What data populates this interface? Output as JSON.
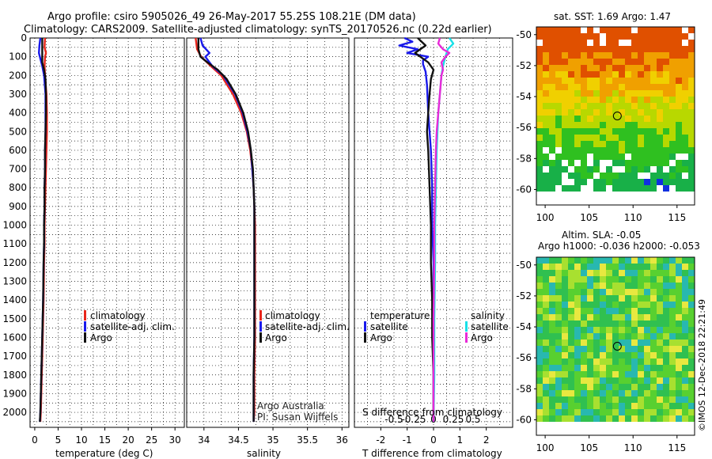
{
  "header": {
    "line1": "Argo profile: csiro 5905026_49 26-May-2017 55.25S 108.21E (DM data)",
    "line2": "Climatology: CARS2009. Satellite-adjusted climatology: synTS_20170526.nc (0.22d earlier)"
  },
  "colors": {
    "climatology": "#e8251a",
    "satellite": "#1a1aeb",
    "argo": "#111111",
    "sat_salinity": "#18e0e8",
    "argo_salinity": "#e82ad8"
  },
  "chart_data": [
    {
      "type": "line",
      "id": "temperature",
      "xlabel": "temperature (deg C)",
      "ylabel": "",
      "xlim": [
        -1,
        32
      ],
      "ylim": [
        2080,
        0
      ],
      "xticks": [
        0,
        5,
        10,
        15,
        20,
        25,
        30
      ],
      "yticks": [
        0,
        100,
        200,
        300,
        400,
        500,
        600,
        700,
        800,
        900,
        1000,
        1100,
        1200,
        1300,
        1400,
        1500,
        1600,
        1700,
        1800,
        1900,
        2000
      ],
      "legend": [
        "climatology",
        "satellite-adj. clim.",
        "Argo"
      ],
      "series": [
        {
          "name": "climatology",
          "color": "#e8251a",
          "depth": [
            0,
            50,
            80,
            100,
            150,
            200,
            300,
            400,
            500,
            600,
            700,
            800,
            900,
            1000,
            1100,
            1200,
            1400,
            1600,
            1800,
            2000,
            2050
          ],
          "values": [
            2.2,
            2.1,
            2.4,
            2.2,
            2.1,
            2.2,
            2.5,
            2.6,
            2.6,
            2.5,
            2.4,
            2.3,
            2.2,
            2.1,
            2.1,
            2.0,
            1.9,
            1.7,
            1.5,
            1.3,
            1.2
          ]
        },
        {
          "name": "satellite-adj. clim.",
          "color": "#1a1aeb",
          "depth": [
            0,
            40,
            80,
            120,
            150,
            200,
            300,
            400,
            500,
            600,
            700,
            800,
            900,
            1000,
            1100,
            1200,
            1400,
            1600,
            1800,
            2000,
            2050
          ],
          "values": [
            1.2,
            1.0,
            0.9,
            1.3,
            1.6,
            2.0,
            2.3,
            2.3,
            2.3,
            2.2,
            2.2,
            2.1,
            2.1,
            2.0,
            2.0,
            1.9,
            1.8,
            1.6,
            1.4,
            1.2,
            1.1
          ]
        },
        {
          "name": "Argo",
          "color": "#111111",
          "depth": [
            0,
            50,
            100,
            130,
            170,
            220,
            300,
            400,
            500,
            600,
            700,
            800,
            900,
            1000,
            1100,
            1200,
            1400,
            1600,
            1800,
            2000,
            2050
          ],
          "values": [
            1.6,
            1.6,
            1.6,
            1.6,
            2.0,
            2.3,
            2.4,
            2.4,
            2.3,
            2.2,
            2.2,
            2.1,
            2.1,
            2.0,
            2.0,
            1.9,
            1.8,
            1.6,
            1.4,
            1.2,
            1.1
          ]
        }
      ]
    },
    {
      "type": "line",
      "id": "salinity",
      "xlabel": "salinity",
      "ylabel": "",
      "xlim": [
        33.75,
        36.1
      ],
      "ylim": [
        2080,
        0
      ],
      "xticks": [
        34,
        34.5,
        35,
        35.5,
        36
      ],
      "yticks": [
        0,
        100,
        200,
        300,
        400,
        500,
        600,
        700,
        800,
        900,
        1000,
        1100,
        1200,
        1300,
        1400,
        1500,
        1600,
        1700,
        1800,
        1900,
        2000
      ],
      "legend": [
        "climatology",
        "satellite-adj. clim.",
        "Argo"
      ],
      "annotations": [
        "Argo Australia",
        "PI: Susan Wijffels"
      ],
      "series": [
        {
          "name": "climatology",
          "color": "#e8251a",
          "depth": [
            0,
            60,
            100,
            150,
            200,
            300,
            400,
            500,
            600,
            700,
            800,
            900,
            1000,
            1100,
            1200,
            1400,
            1600,
            1800,
            2000,
            2050
          ],
          "values": [
            33.88,
            33.9,
            33.96,
            34.1,
            34.25,
            34.42,
            34.54,
            34.62,
            34.67,
            34.7,
            34.72,
            34.73,
            34.74,
            34.74,
            34.74,
            34.74,
            34.74,
            34.73,
            34.73,
            34.72
          ]
        },
        {
          "name": "satellite-adj. clim.",
          "color": "#1a1aeb",
          "depth": [
            0,
            40,
            80,
            100,
            150,
            200,
            300,
            400,
            500,
            600,
            700,
            800,
            900,
            1000,
            1100,
            1200,
            1400,
            1600,
            1800,
            2000,
            2050
          ],
          "values": [
            33.95,
            33.98,
            34.08,
            34.02,
            34.12,
            34.28,
            34.45,
            34.56,
            34.63,
            34.68,
            34.7,
            34.72,
            34.73,
            34.73,
            34.73,
            34.73,
            34.73,
            34.73,
            34.72,
            34.72,
            34.72
          ]
        },
        {
          "name": "Argo",
          "color": "#111111",
          "depth": [
            0,
            60,
            100,
            130,
            170,
            220,
            300,
            400,
            500,
            600,
            700,
            800,
            900,
            1000,
            1100,
            1200,
            1400,
            1600,
            1800,
            2000,
            2050
          ],
          "values": [
            33.92,
            33.92,
            33.95,
            34.05,
            34.2,
            34.33,
            34.46,
            34.57,
            34.64,
            34.68,
            34.71,
            34.72,
            34.73,
            34.73,
            34.73,
            34.73,
            34.73,
            34.73,
            34.72,
            34.72,
            34.72
          ]
        }
      ]
    },
    {
      "type": "line",
      "id": "difference",
      "xlabel": "T difference from climatology",
      "xlabel_top": "S difference from climatology",
      "xlim": [
        -3,
        3
      ],
      "xticks": [
        -2,
        -1,
        0,
        1,
        2
      ],
      "xticks_top": [
        "-0.5",
        "-0.25",
        "0",
        "0.25",
        "0.5"
      ],
      "ylim": [
        2080,
        0
      ],
      "legend_temperature_title": "temperature",
      "legend_salinity_title": "salinity",
      "legend_temperature": [
        "satellite",
        "Argo"
      ],
      "legend_salinity": [
        "satellite",
        "Argo"
      ],
      "series": [
        {
          "name": "temperature satellite",
          "color": "#1a1aeb",
          "depth": [
            0,
            20,
            40,
            60,
            80,
            100,
            120,
            140,
            180,
            250,
            400,
            500,
            600,
            800,
            1000,
            1200,
            1400,
            1600,
            1800,
            2000,
            2050
          ],
          "values": [
            -1.1,
            -0.8,
            -1.3,
            -0.6,
            -1.0,
            -0.2,
            -0.4,
            -0.4,
            -0.3,
            -0.25,
            -0.2,
            -0.15,
            -0.1,
            -0.05,
            -0.05,
            0.0,
            0.0,
            0.0,
            0.0,
            0.0,
            0.0
          ]
        },
        {
          "name": "temperature Argo",
          "color": "#111111",
          "depth": [
            0,
            40,
            80,
            100,
            130,
            170,
            220,
            300,
            400,
            500,
            600,
            800,
            1000,
            1200,
            1400,
            1600,
            1800,
            2000,
            2050
          ],
          "values": [
            -0.6,
            -0.3,
            -0.7,
            -0.5,
            -0.2,
            0.0,
            -0.1,
            -0.15,
            -0.2,
            -0.25,
            -0.2,
            -0.15,
            -0.1,
            -0.1,
            -0.05,
            -0.05,
            0.0,
            0.0,
            0.0
          ]
        },
        {
          "name": "salinity satellite",
          "color": "#18e0e8",
          "depth": [
            0,
            30,
            60,
            100,
            150,
            200,
            300,
            400,
            600,
            800,
            1000,
            1200,
            1500,
            1800,
            2050
          ],
          "values": [
            0.2,
            0.25,
            0.18,
            0.15,
            0.12,
            0.1,
            0.08,
            0.06,
            0.04,
            0.03,
            0.02,
            0.02,
            0.01,
            0.01,
            0.0
          ]
        },
        {
          "name": "salinity Argo",
          "color": "#e82ad8",
          "depth": [
            0,
            30,
            60,
            80,
            100,
            130,
            170,
            200,
            300,
            400,
            500,
            600,
            800,
            1000,
            1200,
            1500,
            1800,
            2050
          ],
          "values": [
            0.08,
            0.06,
            0.12,
            0.2,
            0.15,
            0.1,
            0.12,
            0.1,
            0.08,
            0.06,
            0.04,
            0.03,
            0.02,
            0.01,
            0.01,
            0.0,
            0.0,
            0.0
          ]
        }
      ]
    },
    {
      "type": "heatmap",
      "id": "sst-map",
      "title": "sat. SST: 1.69 Argo: 1.47",
      "xlim": [
        99,
        117
      ],
      "ylim": [
        -61,
        -49.5
      ],
      "xticks": [
        100,
        105,
        110,
        115
      ],
      "yticks": [
        -50,
        -52,
        -54,
        -56,
        -58,
        -60
      ],
      "marker": {
        "lon": 108.21,
        "lat": -55.25
      }
    },
    {
      "type": "heatmap",
      "id": "sla-map",
      "title": "Altim. SLA: -0.05",
      "subtitle": "Argo h1000: -0.036 h2000: -0.053",
      "xlim": [
        99,
        117
      ],
      "ylim": [
        -61,
        -49.5
      ],
      "xticks": [
        100,
        105,
        110,
        115
      ],
      "yticks": [
        -50,
        -52,
        -54,
        -56,
        -58,
        -60
      ],
      "marker": {
        "lon": 108.21,
        "lat": -55.25
      }
    }
  ],
  "credit": "©IMOS 12-Dec-2018 22:21:49"
}
